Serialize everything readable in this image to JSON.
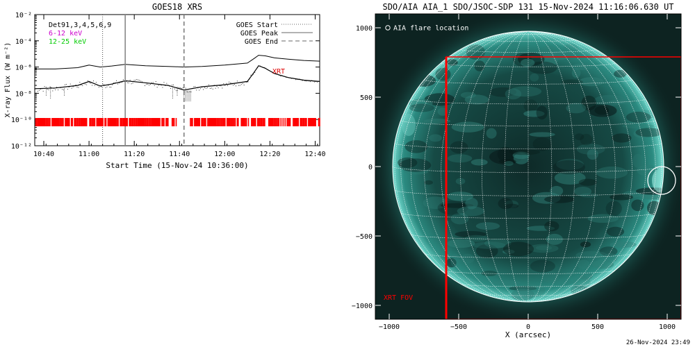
{
  "chart_data": [
    {
      "type": "line",
      "title": "GOES18 XRS",
      "xlabel": "Start Time (15-Nov-24 10:36:00)",
      "ylabel": "X-ray Flux (W m⁻²)",
      "y_scale": "log",
      "ylim_exp": [
        -12,
        -2
      ],
      "y_ticks": [
        "10⁻²",
        "10⁻⁴",
        "10⁻⁶",
        "10⁻⁸",
        "10⁻¹⁰",
        "10⁻¹²"
      ],
      "xlim": [
        "10:36",
        "12:42"
      ],
      "x_ticks": [
        "10:40",
        "11:00",
        "11:20",
        "11:40",
        "12:00",
        "12:20",
        "12:40"
      ],
      "legend_left": [
        {
          "text": "Det91,3,4,5,6,9",
          "color": "#000000"
        },
        {
          "text": "6-12 keV",
          "color": "#cc00cc"
        },
        {
          "text": "12-25 keV",
          "color": "#00cc00"
        }
      ],
      "legend_right": [
        {
          "text": "GOES Start",
          "style": "dotted"
        },
        {
          "text": "GOES Peak",
          "style": "solid"
        },
        {
          "text": "GOES End",
          "style": "dashed"
        }
      ],
      "annotation": {
        "text": "XRT",
        "color": "#dd0000"
      },
      "event_lines": [
        {
          "name": "GOES Start",
          "time": "11:06"
        },
        {
          "name": "GOES Peak",
          "time": "11:16"
        },
        {
          "name": "GOES End",
          "time": "11:42"
        }
      ],
      "series": [
        {
          "name": "long",
          "time": [
            "10:36",
            "10:45",
            "10:55",
            "11:00",
            "11:05",
            "11:10",
            "11:16",
            "11:25",
            "11:35",
            "11:42",
            "11:50",
            "12:00",
            "12:10",
            "12:13",
            "12:15",
            "12:18",
            "12:22",
            "12:28",
            "12:35",
            "12:42"
          ],
          "exp": [
            -6.15,
            -6.15,
            -6.05,
            -5.85,
            -6.0,
            -5.92,
            -5.8,
            -5.9,
            -5.95,
            -6.0,
            -5.95,
            -5.85,
            -5.7,
            -5.35,
            -5.1,
            -5.15,
            -5.3,
            -5.4,
            -5.5,
            -5.55
          ]
        },
        {
          "name": "short",
          "time": [
            "10:36",
            "10:45",
            "10:55",
            "11:00",
            "11:05",
            "11:10",
            "11:16",
            "11:25",
            "11:35",
            "11:42",
            "11:50",
            "12:00",
            "12:10",
            "12:13",
            "12:15",
            "12:18",
            "12:22",
            "12:28",
            "12:35",
            "12:42"
          ],
          "exp": [
            -7.65,
            -7.6,
            -7.4,
            -7.1,
            -7.45,
            -7.3,
            -7.05,
            -7.2,
            -7.4,
            -7.75,
            -7.5,
            -7.35,
            -7.1,
            -6.4,
            -5.9,
            -6.1,
            -6.5,
            -6.8,
            -7.0,
            -7.1
          ]
        }
      ],
      "xrt_bar": {
        "color": "#ff0000",
        "exp": -10.2,
        "gaps": [
          [
            "11:39",
            "11:43"
          ]
        ]
      }
    },
    {
      "type": "image",
      "title": "SDO/AIA AIA_1 SDO/JSOC-SDP 131 15-Nov-2024 11:16:06.630 UT",
      "xlabel": "X (arcsec)",
      "xlim": [
        -1100,
        1100
      ],
      "ylim": [
        -1100,
        1100
      ],
      "x_ticks": [
        "-1000",
        "-500",
        "0",
        "500",
        "1000"
      ],
      "y_ticks": [
        "1000",
        "500",
        "0",
        "-500",
        "-1000"
      ],
      "legend": "AIA flare location",
      "flare_location": {
        "x": 960,
        "y": -100
      },
      "xrt_fov": {
        "label": "XRT FOV",
        "color": "#ff0000",
        "x": [
          -590,
          1100
        ],
        "y": [
          -1100,
          790
        ]
      },
      "solar_radius_arcsec": 975,
      "grid_spacing_deg": 10
    }
  ],
  "footer": {
    "timestamp": "26-Nov-2024 23:49"
  }
}
